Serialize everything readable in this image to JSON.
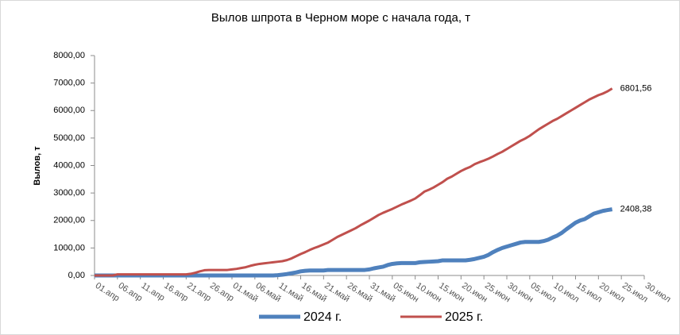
{
  "chart_data": {
    "type": "line",
    "title": "Вылов шпрота в Черном море с начала года, т",
    "y_label": "Вылов, т",
    "categories": [
      "01.апр",
      null,
      null,
      null,
      null,
      "06.апр",
      null,
      null,
      null,
      null,
      "11.апр",
      null,
      null,
      null,
      null,
      "16.апр",
      null,
      null,
      null,
      null,
      "21.апр",
      null,
      null,
      null,
      null,
      "26.апр",
      null,
      null,
      null,
      null,
      "01.май",
      null,
      null,
      null,
      null,
      "06.май",
      null,
      null,
      null,
      null,
      "11.май",
      null,
      null,
      null,
      null,
      "16.май",
      null,
      null,
      null,
      null,
      "21.май",
      null,
      null,
      null,
      null,
      "26.май",
      null,
      null,
      null,
      null,
      "31.май",
      null,
      null,
      null,
      null,
      "05.июн",
      null,
      null,
      null,
      null,
      "10.июн",
      null,
      null,
      null,
      null,
      "15.июн",
      null,
      null,
      null,
      null,
      "20.июн",
      null,
      null,
      null,
      null,
      "25.июн",
      null,
      null,
      null,
      null,
      "30.июн",
      null,
      null,
      null,
      null,
      "05.июл",
      null,
      null,
      null,
      null,
      "10.июл",
      null,
      null,
      null,
      null,
      "15.июл",
      null,
      null,
      null,
      null,
      "20.июл",
      null,
      null,
      null,
      null,
      "25.июл",
      null,
      null,
      null,
      null,
      "30.июл"
    ],
    "series": [
      {
        "name": "2024 г.",
        "color": "#4f81bd",
        "width": 5,
        "values": [
          0,
          0,
          0,
          0,
          0,
          0,
          0,
          0,
          0,
          0,
          0,
          0,
          0,
          0,
          0,
          0,
          0,
          0,
          0,
          0,
          0,
          0,
          0,
          0,
          0,
          0,
          0,
          0,
          0,
          0,
          0,
          0,
          0,
          0,
          0,
          0,
          0,
          0,
          0,
          0,
          10,
          30,
          50,
          80,
          110,
          150,
          170,
          180,
          180,
          180,
          180,
          200,
          200,
          200,
          200,
          200,
          200,
          200,
          200,
          200,
          220,
          260,
          290,
          320,
          380,
          420,
          440,
          450,
          450,
          450,
          450,
          480,
          490,
          500,
          510,
          520,
          550,
          550,
          550,
          550,
          550,
          550,
          570,
          600,
          640,
          680,
          750,
          850,
          930,
          1000,
          1050,
          1100,
          1150,
          1200,
          1220,
          1220,
          1220,
          1220,
          1250,
          1300,
          1380,
          1450,
          1550,
          1680,
          1800,
          1920,
          2000,
          2050,
          2150,
          2250,
          2300,
          2350,
          2380,
          2408.38,
          null,
          null,
          null,
          null,
          null,
          null,
          null
        ],
        "value_labels": {
          "113": "2408,38"
        }
      },
      {
        "name": "2025 г.",
        "color": "#c0504d",
        "width": 3,
        "values": [
          0,
          0,
          0,
          0,
          0,
          40,
          40,
          40,
          40,
          40,
          40,
          40,
          40,
          40,
          40,
          40,
          40,
          40,
          40,
          40,
          40,
          60,
          100,
          150,
          190,
          200,
          200,
          200,
          200,
          200,
          220,
          240,
          270,
          300,
          350,
          390,
          420,
          440,
          460,
          480,
          500,
          520,
          560,
          620,
          700,
          780,
          850,
          930,
          1000,
          1060,
          1130,
          1200,
          1300,
          1400,
          1480,
          1560,
          1640,
          1720,
          1820,
          1910,
          2000,
          2100,
          2200,
          2280,
          2350,
          2420,
          2500,
          2580,
          2650,
          2720,
          2800,
          2920,
          3050,
          3120,
          3200,
          3300,
          3400,
          3520,
          3600,
          3700,
          3800,
          3880,
          3950,
          4050,
          4120,
          4180,
          4250,
          4330,
          4420,
          4500,
          4600,
          4700,
          4800,
          4900,
          4980,
          5080,
          5200,
          5320,
          5420,
          5520,
          5620,
          5700,
          5800,
          5900,
          6000,
          6100,
          6200,
          6300,
          6400,
          6480,
          6560,
          6620,
          6700,
          6801.56,
          null,
          null,
          null,
          null,
          null,
          null,
          null
        ],
        "value_labels": {
          "113": "6801,56"
        }
      }
    ],
    "ylim": [
      0,
      8000
    ],
    "yticks": [
      {
        "value": 0,
        "label": "0,00"
      },
      {
        "value": 1000,
        "label": "1000,00"
      },
      {
        "value": 2000,
        "label": "2000,00"
      },
      {
        "value": 3000,
        "label": "3000,00"
      },
      {
        "value": 4000,
        "label": "4000,00"
      },
      {
        "value": 5000,
        "label": "5000,00"
      },
      {
        "value": 6000,
        "label": "6000,00"
      },
      {
        "value": 7000,
        "label": "7000,00"
      },
      {
        "value": 8000,
        "label": "8000,00"
      }
    ],
    "grid": false,
    "legend": "bottom"
  }
}
